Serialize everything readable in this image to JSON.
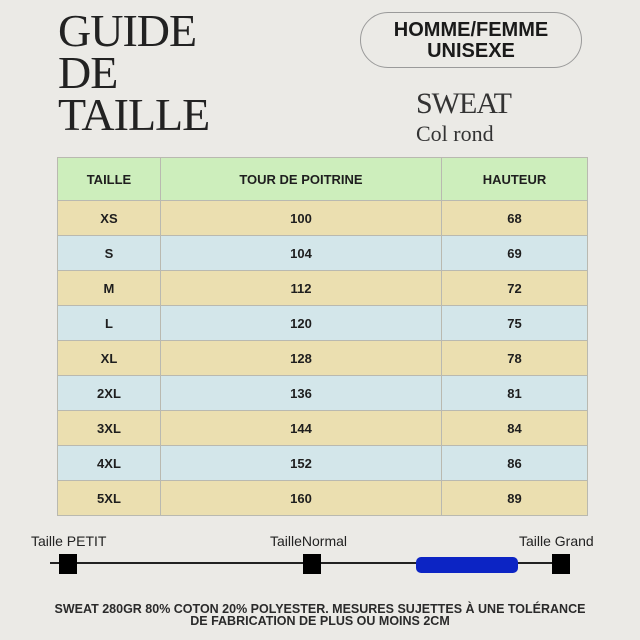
{
  "title": [
    "GUIDE",
    "DE",
    "TAILLE"
  ],
  "badge": {
    "line1": "HOMME/FEMME",
    "line2": "UNISEXE"
  },
  "product": {
    "name": "SWEAT",
    "style": "Col rond"
  },
  "table": {
    "headers": [
      "TAILLE",
      "TOUR DE POITRINE",
      "HAUTEUR"
    ],
    "rows": [
      [
        "XS",
        "100",
        "68"
      ],
      [
        "S",
        "104",
        "69"
      ],
      [
        "M",
        "112",
        "72"
      ],
      [
        "L",
        "120",
        "75"
      ],
      [
        "XL",
        "128",
        "78"
      ],
      [
        "2XL",
        "136",
        "81"
      ],
      [
        "3XL",
        "144",
        "84"
      ],
      [
        "4XL",
        "152",
        "86"
      ],
      [
        "5XL",
        "160",
        "89"
      ]
    ]
  },
  "colors": {
    "header": "#cdeebc",
    "row_tan": "#ebdfb0",
    "row_blue": "#d3e6ea",
    "fit_indicator": "#0c24c4",
    "background": "#ebeae6"
  },
  "fit_scale": {
    "labels": [
      "Taille PETIT",
      "TailleNormal",
      "Taille Grand"
    ],
    "fit_level": 0.81
  },
  "note": {
    "line1": "SWEAT 280GR 80% COTON 20% POLYESTER. MESURES SUJETTES À UNE TOLÉRANCE",
    "line2": "DE FABRICATION DE PLUS OU MOINS 2CM"
  }
}
